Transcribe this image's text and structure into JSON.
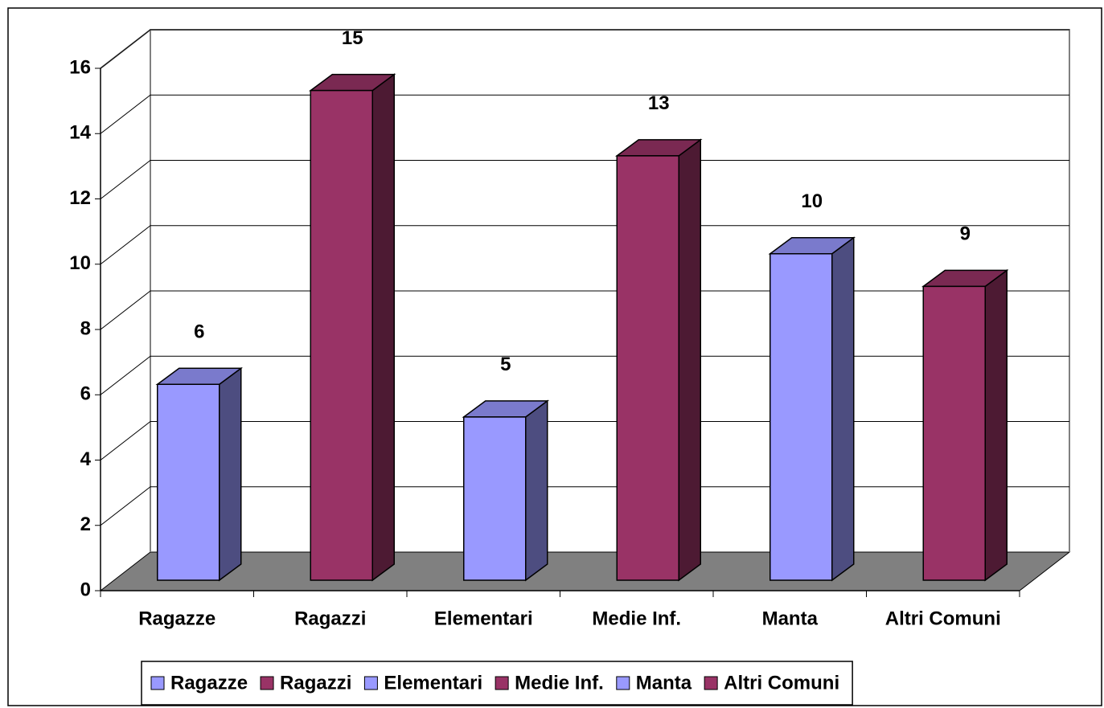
{
  "chart_data": {
    "type": "bar3d",
    "categories": [
      "Ragazze",
      "Ragazzi",
      "Elementari",
      "Medie Inf.",
      "Manta",
      "Altri Comuni"
    ],
    "values": [
      6,
      15,
      5,
      13,
      10,
      9
    ],
    "colors": [
      "#9999ff",
      "#993366",
      "#9999ff",
      "#993366",
      "#9999ff",
      "#993366"
    ],
    "ylim": [
      0,
      16
    ],
    "yticks": [
      0,
      2,
      4,
      6,
      8,
      10,
      12,
      14,
      16
    ],
    "grid": true,
    "legend": "bottom"
  }
}
